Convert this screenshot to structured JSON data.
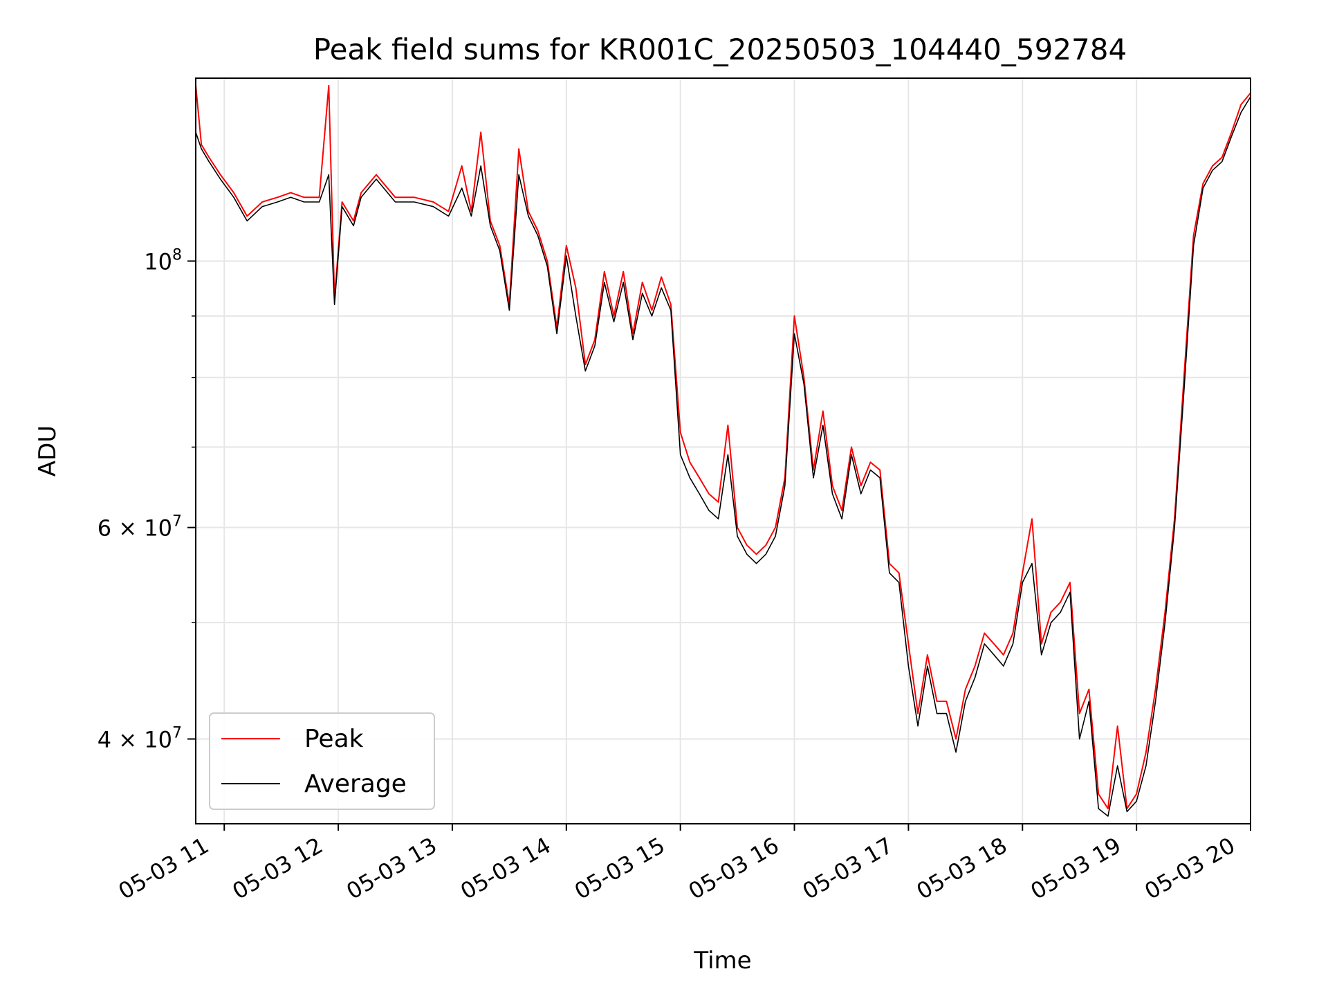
{
  "chart_data": {
    "type": "line",
    "title": "Peak field sums for KR001C_20250503_104440_592784",
    "xlabel": "Time",
    "ylabel": "ADU",
    "y_scale": "log",
    "ylim": [
      34000000,
      142000000
    ],
    "xlim": [
      "05-03 10:45",
      "05-03 20:00"
    ],
    "grid": true,
    "legend_position": "lower-left",
    "x_ticks": [
      "05-03 11",
      "05-03 12",
      "05-03 13",
      "05-03 14",
      "05-03 15",
      "05-03 16",
      "05-03 17",
      "05-03 18",
      "05-03 19",
      "05-03 20"
    ],
    "y_ticks": [
      {
        "value": 100000000,
        "base": "10",
        "exp": "8"
      },
      {
        "value": 60000000,
        "base": "6 × 10",
        "exp": "7"
      },
      {
        "value": 40000000,
        "base": "4 × 10",
        "exp": "7"
      }
    ],
    "series": [
      {
        "name": "Peak",
        "color": "#ff0000"
      },
      {
        "name": "Average",
        "color": "#000000"
      }
    ],
    "x": [
      "05-03 10:45",
      "05-03 10:48",
      "05-03 10:52",
      "05-03 10:58",
      "05-03 11:05",
      "05-03 11:12",
      "05-03 11:20",
      "05-03 11:28",
      "05-03 11:35",
      "05-03 11:42",
      "05-03 11:50",
      "05-03 11:55",
      "05-03 11:58",
      "05-03 12:02",
      "05-03 12:08",
      "05-03 12:12",
      "05-03 12:20",
      "05-03 12:30",
      "05-03 12:40",
      "05-03 12:50",
      "05-03 12:58",
      "05-03 13:05",
      "05-03 13:10",
      "05-03 13:15",
      "05-03 13:20",
      "05-03 13:25",
      "05-03 13:30",
      "05-03 13:35",
      "05-03 13:40",
      "05-03 13:45",
      "05-03 13:50",
      "05-03 13:55",
      "05-03 14:00",
      "05-03 14:05",
      "05-03 14:10",
      "05-03 14:15",
      "05-03 14:20",
      "05-03 14:25",
      "05-03 14:30",
      "05-03 14:35",
      "05-03 14:40",
      "05-03 14:45",
      "05-03 14:50",
      "05-03 14:55",
      "05-03 15:00",
      "05-03 15:05",
      "05-03 15:10",
      "05-03 15:15",
      "05-03 15:20",
      "05-03 15:25",
      "05-03 15:30",
      "05-03 15:35",
      "05-03 15:40",
      "05-03 15:45",
      "05-03 15:50",
      "05-03 15:55",
      "05-03 16:00",
      "05-03 16:05",
      "05-03 16:10",
      "05-03 16:15",
      "05-03 16:20",
      "05-03 16:25",
      "05-03 16:30",
      "05-03 16:35",
      "05-03 16:40",
      "05-03 16:45",
      "05-03 16:50",
      "05-03 16:55",
      "05-03 17:00",
      "05-03 17:05",
      "05-03 17:10",
      "05-03 17:15",
      "05-03 17:20",
      "05-03 17:25",
      "05-03 17:30",
      "05-03 17:35",
      "05-03 17:40",
      "05-03 17:45",
      "05-03 17:50",
      "05-03 17:55",
      "05-03 18:00",
      "05-03 18:05",
      "05-03 18:10",
      "05-03 18:15",
      "05-03 18:20",
      "05-03 18:25",
      "05-03 18:30",
      "05-03 18:35",
      "05-03 18:40",
      "05-03 18:45",
      "05-03 18:50",
      "05-03 18:55",
      "05-03 19:00",
      "05-03 19:05",
      "05-03 19:10",
      "05-03 19:15",
      "05-03 19:20",
      "05-03 19:25",
      "05-03 19:30",
      "05-03 19:35",
      "05-03 19:40",
      "05-03 19:45",
      "05-03 19:50",
      "05-03 19:55",
      "05-03 20:00"
    ],
    "peak": [
      140000000,
      125000000,
      122000000,
      118000000,
      114000000,
      109000000,
      112000000,
      113000000,
      114000000,
      113000000,
      113000000,
      140000000,
      93000000,
      112000000,
      108000000,
      114000000,
      118000000,
      113000000,
      113000000,
      112000000,
      110000000,
      120000000,
      110000000,
      128000000,
      108000000,
      103000000,
      92000000,
      124000000,
      110000000,
      106000000,
      100000000,
      88000000,
      103000000,
      95000000,
      82000000,
      86000000,
      98000000,
      90000000,
      98000000,
      87000000,
      96000000,
      91000000,
      97000000,
      92000000,
      72000000,
      68000000,
      66000000,
      64000000,
      63000000,
      73000000,
      60000000,
      58000000,
      57000000,
      58000000,
      60000000,
      66000000,
      90000000,
      80000000,
      67000000,
      75000000,
      65000000,
      62000000,
      70000000,
      65000000,
      68000000,
      67000000,
      56000000,
      55000000,
      48000000,
      42000000,
      47000000,
      43000000,
      43000000,
      40000000,
      44000000,
      46000000,
      49000000,
      48000000,
      47000000,
      49000000,
      55000000,
      61000000,
      48000000,
      51000000,
      52000000,
      54000000,
      42000000,
      44000000,
      36000000,
      35000000,
      41000000,
      35000000,
      36000000,
      39000000,
      44000000,
      51000000,
      61000000,
      80000000,
      105000000,
      116000000,
      120000000,
      122000000,
      128000000,
      135000000,
      138000000
    ],
    "average": [
      128000000,
      124000000,
      121000000,
      117000000,
      113000000,
      108000000,
      111000000,
      112000000,
      113000000,
      112000000,
      112000000,
      118000000,
      92000000,
      111000000,
      107000000,
      113000000,
      117000000,
      112000000,
      112000000,
      111000000,
      109000000,
      115000000,
      109000000,
      120000000,
      107000000,
      102000000,
      91000000,
      118000000,
      109000000,
      105000000,
      99000000,
      87000000,
      101000000,
      90000000,
      81000000,
      85000000,
      96000000,
      89000000,
      96000000,
      86000000,
      94000000,
      90000000,
      95000000,
      91000000,
      69000000,
      66000000,
      64000000,
      62000000,
      61000000,
      69000000,
      59000000,
      57000000,
      56000000,
      57000000,
      59000000,
      65000000,
      87000000,
      79000000,
      66000000,
      73000000,
      64000000,
      61000000,
      69000000,
      64000000,
      67000000,
      66000000,
      55000000,
      54000000,
      46000000,
      41000000,
      46000000,
      42000000,
      42000000,
      39000000,
      43000000,
      45000000,
      48000000,
      47000000,
      46000000,
      48000000,
      54000000,
      56000000,
      47000000,
      50000000,
      51000000,
      53000000,
      40000000,
      43000000,
      35000000,
      34500000,
      38000000,
      34800000,
      35500000,
      38000000,
      43000000,
      50000000,
      60000000,
      78000000,
      103000000,
      115000000,
      119000000,
      121000000,
      127000000,
      133000000,
      137000000
    ]
  }
}
